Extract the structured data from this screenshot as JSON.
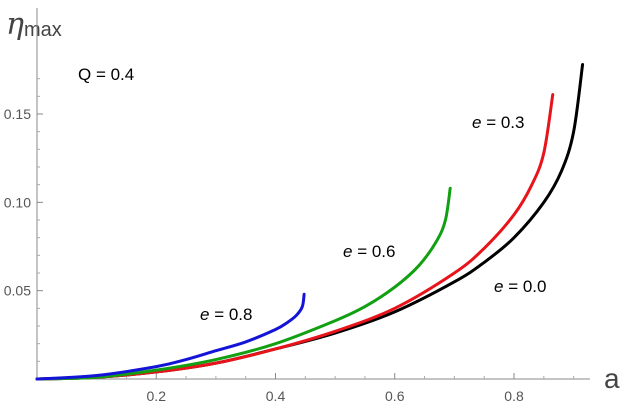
{
  "chart_data": {
    "type": "line",
    "title": "",
    "xlabel": "a",
    "ylabel_symbol": "η",
    "ylabel_sub": "max",
    "xlim": [
      0,
      0.92
    ],
    "ylim": [
      0,
      0.18
    ],
    "xticks": [
      0.2,
      0.4,
      0.6,
      0.8
    ],
    "xtick_labels": [
      "0.2",
      "0.4",
      "0.6",
      "0.8"
    ],
    "yticks": [
      0.05,
      0.1,
      0.15
    ],
    "ytick_labels": [
      "0.05",
      "0.10",
      "0.15"
    ],
    "grid": false,
    "annotation": "Q = 0.4",
    "series": [
      {
        "name": "e = 0.0",
        "color": "#000000",
        "x": [
          0,
          0.1,
          0.2,
          0.3,
          0.4,
          0.5,
          0.6,
          0.7,
          0.75,
          0.8,
          0.85,
          0.88,
          0.9,
          0.915
        ],
        "y": [
          0,
          0.001,
          0.004,
          0.009,
          0.017,
          0.026,
          0.038,
          0.055,
          0.066,
          0.08,
          0.1,
          0.118,
          0.14,
          0.178
        ]
      },
      {
        "name": "e = 0.3",
        "color": "#e8141b",
        "x": [
          0,
          0.1,
          0.2,
          0.3,
          0.4,
          0.5,
          0.6,
          0.7,
          0.75,
          0.8,
          0.83,
          0.85,
          0.865
        ],
        "y": [
          0,
          0.001,
          0.004,
          0.009,
          0.017,
          0.027,
          0.04,
          0.06,
          0.074,
          0.093,
          0.11,
          0.128,
          0.161
        ]
      },
      {
        "name": "e = 0.6",
        "color": "#12a012",
        "x": [
          0,
          0.1,
          0.2,
          0.3,
          0.4,
          0.5,
          0.55,
          0.6,
          0.64,
          0.67,
          0.685,
          0.693
        ],
        "y": [
          0,
          0.001,
          0.005,
          0.011,
          0.02,
          0.033,
          0.041,
          0.052,
          0.064,
          0.078,
          0.09,
          0.108
        ]
      },
      {
        "name": "e = 0.8",
        "color": "#1414d8",
        "x": [
          0,
          0.1,
          0.2,
          0.25,
          0.3,
          0.35,
          0.4,
          0.42,
          0.435,
          0.445,
          0.448
        ],
        "y": [
          0,
          0.002,
          0.007,
          0.011,
          0.016,
          0.021,
          0.028,
          0.032,
          0.036,
          0.041,
          0.048
        ]
      }
    ]
  }
}
